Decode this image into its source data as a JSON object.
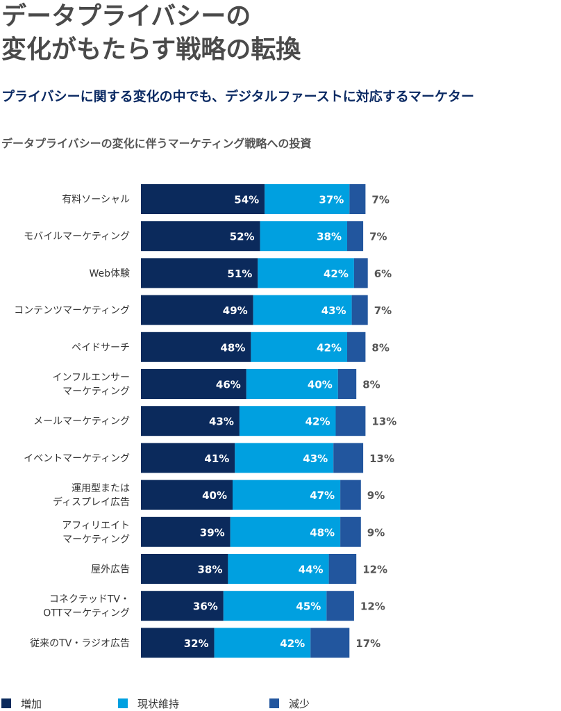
{
  "header": {
    "title": "データプライバシーの\n変化がもたらす戦略の転換",
    "subtitle": "プライバシーに関する変化の中でも、デジタルファーストに対応するマーケター"
  },
  "chart_data": {
    "type": "bar",
    "orientation": "horizontal",
    "stacked": true,
    "title": "データプライバシーの変化に伴うマーケティング戦略への投資",
    "categories": [
      "有料ソーシャル",
      "モバイルマーケティング",
      "Web体験",
      "コンテンツマーケティング",
      "ペイドサーチ",
      "インフルエンサー\nマーケティング",
      "メールマーケティング",
      "イベントマーケティング",
      "運用型または\nディスプレイ広告",
      "アフィリエイト\nマーケティング",
      "屋外広告",
      "コネクテッドTV・\nOTTマーケティング",
      "従来のTV・ラジオ広告"
    ],
    "series": [
      {
        "name": "増加",
        "color": "#0b2a5c",
        "values": [
          54,
          52,
          51,
          49,
          48,
          46,
          43,
          41,
          40,
          39,
          38,
          36,
          32
        ]
      },
      {
        "name": "現状維持",
        "color": "#00a0e0",
        "values": [
          37,
          38,
          42,
          43,
          42,
          40,
          42,
          43,
          47,
          48,
          44,
          45,
          42
        ]
      },
      {
        "name": "減少",
        "color": "#22569e",
        "values": [
          7,
          7,
          6,
          7,
          8,
          8,
          13,
          13,
          9,
          9,
          12,
          12,
          17
        ]
      }
    ],
    "value_suffix": "%",
    "xlim": [
      0,
      100
    ],
    "grid": false,
    "legend_position": "bottom"
  }
}
